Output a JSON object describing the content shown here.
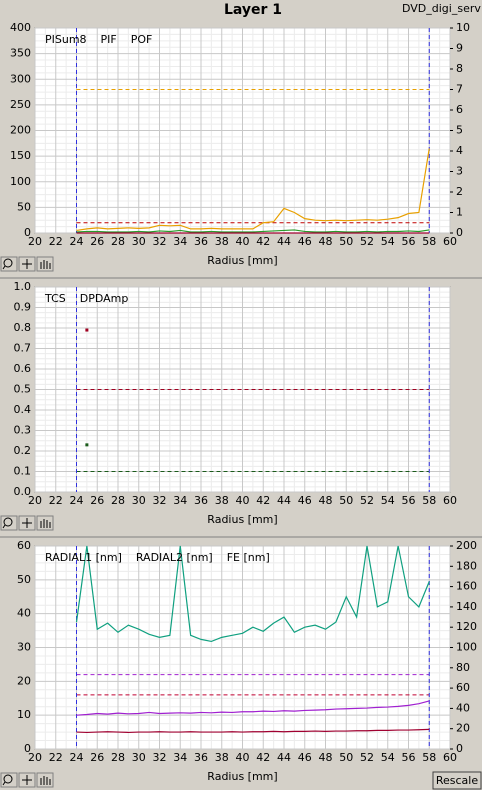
{
  "window_title": "Layer 1",
  "tab_label": "DVD_digi_serv",
  "button": "Rescale",
  "chart_data": [
    {
      "type": "line",
      "xlabel": "Radius [mm]",
      "x": [
        24,
        25,
        26,
        27,
        28,
        29,
        30,
        31,
        32,
        33,
        34,
        35,
        36,
        37,
        38,
        39,
        40,
        41,
        42,
        43,
        44,
        45,
        46,
        47,
        48,
        49,
        50,
        51,
        52,
        53,
        54,
        55,
        56,
        57,
        58
      ],
      "series": [
        {
          "name": "PISum8",
          "color": "#e8a000",
          "values": [
            5,
            8,
            10,
            8,
            9,
            10,
            9,
            10,
            15,
            14,
            15,
            8,
            8,
            9,
            8,
            8,
            8,
            8,
            20,
            22,
            48,
            40,
            28,
            25,
            24,
            25,
            24,
            25,
            26,
            25,
            27,
            30,
            38,
            40,
            165
          ]
        },
        {
          "name": "PIF",
          "color": "#2a9a2a",
          "values": [
            2,
            3,
            3,
            2,
            2,
            2,
            3,
            2,
            4,
            3,
            5,
            2,
            2,
            3,
            2,
            2,
            2,
            2,
            3,
            4,
            5,
            6,
            3,
            2,
            2,
            3,
            2,
            2,
            3,
            2,
            3,
            3,
            4,
            3,
            6
          ]
        },
        {
          "name": "POF",
          "color": "#a00030",
          "values": [
            0,
            0,
            0,
            0,
            0,
            0,
            0,
            0,
            0,
            0,
            0,
            0,
            0,
            0,
            0,
            0,
            0,
            0,
            0,
            0,
            0,
            0,
            0,
            0,
            0,
            0,
            0,
            0,
            0,
            0,
            0,
            0,
            0,
            0,
            0
          ]
        }
      ],
      "reference_lines": [
        {
          "value": 280,
          "color": "#e8a000"
        },
        {
          "value": 20,
          "color": "#c00000"
        }
      ],
      "vlines": [
        24,
        58
      ],
      "vline_color": "#3030e0",
      "xlim": [
        20,
        60
      ],
      "xticks": [
        20,
        22,
        24,
        26,
        28,
        30,
        32,
        34,
        36,
        38,
        40,
        42,
        44,
        46,
        48,
        50,
        52,
        54,
        56,
        58,
        60
      ],
      "ylim": [
        0,
        400
      ],
      "yticks": [
        0,
        50,
        100,
        150,
        200,
        250,
        300,
        350,
        400
      ],
      "y2lim": [
        0,
        10
      ],
      "y2ticks": [
        0,
        1,
        2,
        3,
        4,
        5,
        6,
        7,
        8,
        9,
        10
      ],
      "grid": true
    },
    {
      "type": "scatter",
      "xlabel": "Radius [mm]",
      "series": [
        {
          "name": "TCS",
          "color": "#1a5a1a",
          "x": [
            25
          ],
          "values": [
            0.23
          ]
        },
        {
          "name": "DPDAmp",
          "color": "#a00020",
          "x": [
            25
          ],
          "values": [
            0.79
          ]
        }
      ],
      "reference_lines": [
        {
          "value": 0.5,
          "color": "#a00020"
        },
        {
          "value": 0.1,
          "color": "#1a5a1a"
        }
      ],
      "vlines": [
        24,
        58
      ],
      "vline_color": "#3030e0",
      "xlim": [
        20,
        60
      ],
      "xticks": [
        20,
        22,
        24,
        26,
        28,
        30,
        32,
        34,
        36,
        38,
        40,
        42,
        44,
        46,
        48,
        50,
        52,
        54,
        56,
        58,
        60
      ],
      "ylim": [
        0,
        1
      ],
      "yticks": [
        {
          "value": 0,
          "label": "0.0"
        },
        0.1,
        0.2,
        0.3,
        0.4,
        0.5,
        0.6,
        0.7,
        0.8,
        0.9,
        {
          "value": 1,
          "label": "1.0"
        }
      ],
      "grid": true
    },
    {
      "type": "line",
      "xlabel": "Radius [mm]",
      "x": [
        24,
        25,
        26,
        27,
        28,
        29,
        30,
        31,
        32,
        33,
        34,
        35,
        36,
        37,
        38,
        39,
        40,
        41,
        42,
        43,
        44,
        45,
        46,
        47,
        48,
        49,
        50,
        51,
        52,
        53,
        54,
        55,
        56,
        57,
        58
      ],
      "series": [
        {
          "name": "RADIAL1 [nm]",
          "color": "#a020d0",
          "values": [
            10,
            10.2,
            10.5,
            10.3,
            10.6,
            10.4,
            10.5,
            10.8,
            10.5,
            10.6,
            10.7,
            10.6,
            10.8,
            10.7,
            10.9,
            10.8,
            11,
            11,
            11.2,
            11.1,
            11.3,
            11.2,
            11.4,
            11.5,
            11.6,
            11.8,
            11.9,
            12,
            12.1,
            12.3,
            12.4,
            12.6,
            12.9,
            13.4,
            14.2
          ]
        },
        {
          "name": "RADIAL2 [nm]",
          "color": "#a00030",
          "values": [
            5,
            4.9,
            5,
            5.1,
            5,
            4.9,
            5,
            5,
            5.1,
            5,
            5,
            5.1,
            5,
            5,
            5,
            5.1,
            5,
            5.1,
            5.1,
            5.2,
            5.1,
            5.2,
            5.2,
            5.3,
            5.2,
            5.3,
            5.3,
            5.4,
            5.4,
            5.5,
            5.5,
            5.6,
            5.6,
            5.7,
            5.8
          ]
        },
        {
          "name": "FE [nm]",
          "color": "#10a080",
          "axis": "y2",
          "values": [
            125,
            200,
            118,
            124,
            115,
            122,
            118,
            113,
            110,
            112,
            200,
            112,
            108,
            106,
            110,
            112,
            114,
            120,
            116,
            124,
            130,
            115,
            120,
            122,
            118,
            125,
            150,
            130,
            200,
            140,
            145,
            200,
            150,
            140,
            165
          ]
        }
      ],
      "reference_lines": [
        {
          "value": 22,
          "color": "#a020d0"
        },
        {
          "value": 16,
          "color": "#c00030"
        }
      ],
      "vlines": [
        24,
        58
      ],
      "vline_color": "#3030e0",
      "xlim": [
        20,
        60
      ],
      "xticks": [
        20,
        22,
        24,
        26,
        28,
        30,
        32,
        34,
        36,
        38,
        40,
        42,
        44,
        46,
        48,
        50,
        52,
        54,
        56,
        58,
        60
      ],
      "ylim": [
        0,
        60
      ],
      "yticks": [
        0,
        10,
        20,
        30,
        40,
        50,
        60
      ],
      "y2lim": [
        0,
        200
      ],
      "y2ticks": [
        0,
        20,
        40,
        60,
        80,
        100,
        120,
        140,
        160,
        180,
        200
      ],
      "grid": true
    }
  ]
}
